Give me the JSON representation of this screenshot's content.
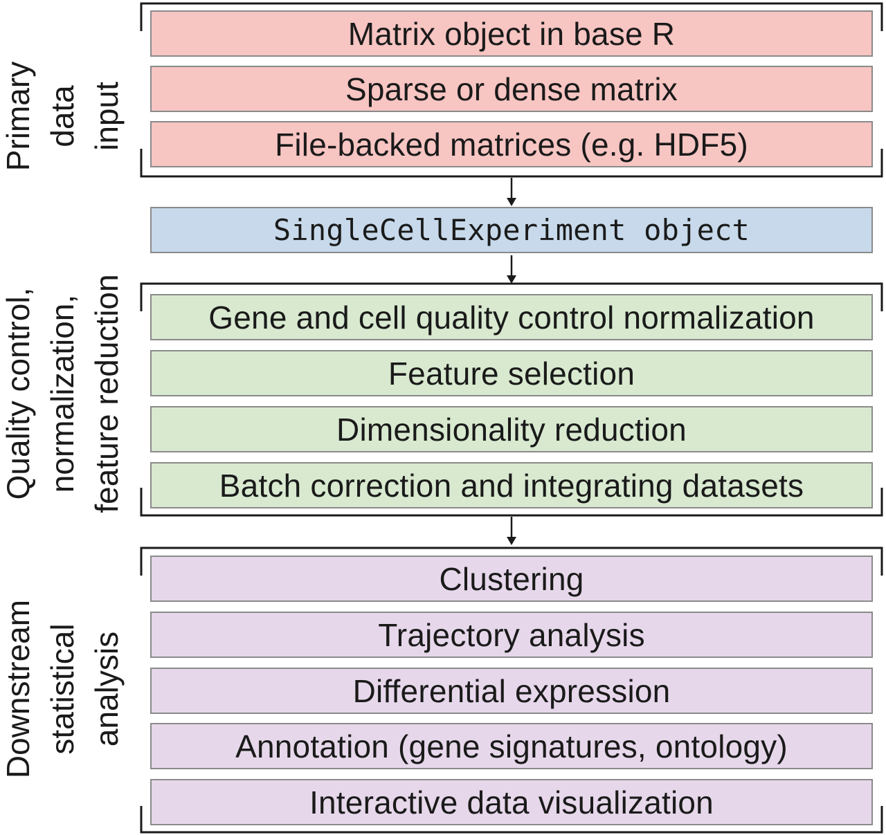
{
  "sections": {
    "primary": {
      "label": [
        "Primary",
        "data",
        "input"
      ],
      "boxes": [
        "Matrix object in base R",
        "Sparse or dense matrix",
        "File-backed matrices (e.g. HDF5)"
      ],
      "color": "#f7c5c2"
    },
    "core": {
      "box": "SingleCellExperiment object",
      "color": "#c7d9ea"
    },
    "qc": {
      "label": [
        "Quality control,",
        "normalization,",
        "feature reduction"
      ],
      "boxes": [
        "Gene and cell quality control normalization",
        "Feature selection",
        "Dimensionality reduction",
        "Batch correction and integrating datasets"
      ],
      "color": "#d8e9d0"
    },
    "downstream": {
      "label": [
        "Downstream",
        "statistical",
        "analysis"
      ],
      "boxes": [
        "Clustering",
        "Trajectory analysis",
        "Differential expression",
        "Annotation (gene signatures, ontology)",
        "Interactive data visualization"
      ],
      "color": "#e6d8ea"
    }
  }
}
